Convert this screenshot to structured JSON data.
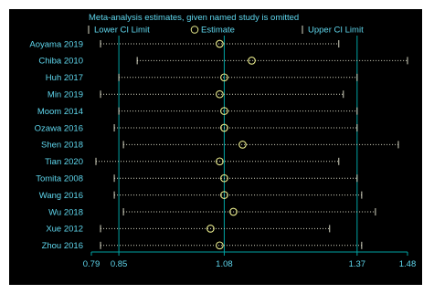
{
  "chart_data": {
    "type": "scatter",
    "title": "Meta-analysis estimates, given named study is omitted",
    "legend": {
      "placement": "top",
      "entries": [
        {
          "marker": "tick",
          "label": "Lower CI Limit"
        },
        {
          "marker": "circle",
          "label": "Estimate"
        },
        {
          "marker": "tick",
          "label": "Upper CI Limit"
        }
      ]
    },
    "xlim": [
      0.79,
      1.48
    ],
    "x_ticks": [
      {
        "value": 0.79,
        "label": "0.79"
      },
      {
        "value": 0.85,
        "label": "0.85"
      },
      {
        "value": 1.08,
        "label": "1.08"
      },
      {
        "value": 1.37,
        "label": "1.37"
      },
      {
        "value": 1.48,
        "label": "1.48"
      }
    ],
    "reference_lines": [
      0.85,
      1.08,
      1.37
    ],
    "grid": false,
    "studies": [
      {
        "name": "Aoyama 2019",
        "estimate": 1.07,
        "lower": 0.81,
        "upper": 1.33
      },
      {
        "name": "Chiba 2010",
        "estimate": 1.14,
        "lower": 0.89,
        "upper": 1.48
      },
      {
        "name": "Huh 2017",
        "estimate": 1.08,
        "lower": 0.85,
        "upper": 1.37
      },
      {
        "name": "Min 2019",
        "estimate": 1.07,
        "lower": 0.81,
        "upper": 1.34
      },
      {
        "name": "Moom 2014",
        "estimate": 1.08,
        "lower": 0.85,
        "upper": 1.37
      },
      {
        "name": "Ozawa 2016",
        "estimate": 1.08,
        "lower": 0.84,
        "upper": 1.37
      },
      {
        "name": "Shen 2018",
        "estimate": 1.12,
        "lower": 0.86,
        "upper": 1.46
      },
      {
        "name": "Tian 2020",
        "estimate": 1.07,
        "lower": 0.8,
        "upper": 1.33
      },
      {
        "name": "Tomita 2008",
        "estimate": 1.08,
        "lower": 0.84,
        "upper": 1.37
      },
      {
        "name": "Wang 2016",
        "estimate": 1.08,
        "lower": 0.84,
        "upper": 1.38
      },
      {
        "name": "Wu 2018",
        "estimate": 1.1,
        "lower": 0.86,
        "upper": 1.41
      },
      {
        "name": "Xue 2012",
        "estimate": 1.05,
        "lower": 0.81,
        "upper": 1.31
      },
      {
        "name": "Zhou 2016",
        "estimate": 1.07,
        "lower": 0.81,
        "upper": 1.38
      }
    ]
  },
  "colors": {
    "background": "#000000",
    "text": "#5fd7ee",
    "reference_line": "#00a2a2",
    "ci_line": "#d8d8c4",
    "estimate_marker": "#e8ea8c"
  }
}
